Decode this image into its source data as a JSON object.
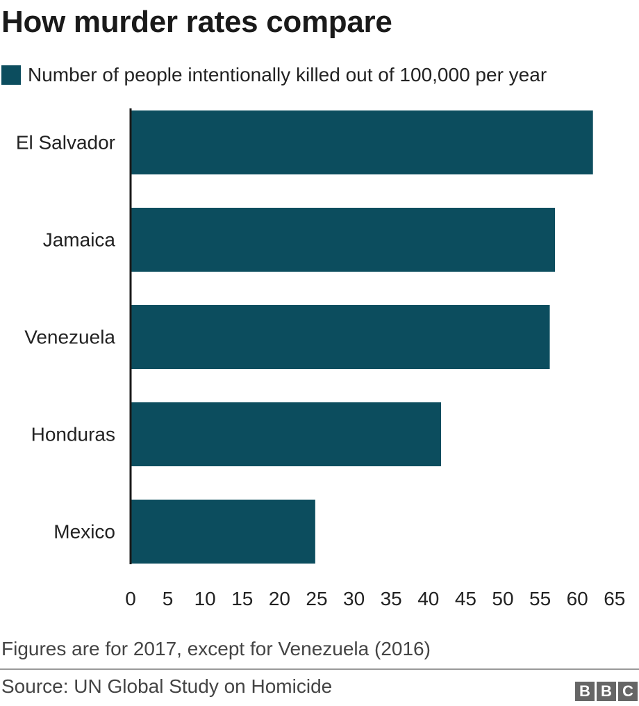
{
  "chart_data": {
    "type": "bar",
    "orientation": "horizontal",
    "title": "How murder rates compare",
    "legend": "Number of people intentionally killed out of 100,000 per year",
    "categories": [
      "El Salvador",
      "Jamaica",
      "Venezuela",
      "Honduras",
      "Mexico"
    ],
    "values": [
      62.1,
      57.0,
      56.3,
      41.7,
      24.8
    ],
    "xlim": [
      0,
      65
    ],
    "xticks": [
      0,
      5,
      10,
      15,
      20,
      25,
      30,
      35,
      40,
      45,
      50,
      55,
      60,
      65
    ],
    "grid": false,
    "legend_position": "top-left",
    "bar_color": "#0c4d5e"
  },
  "footnote": "Figures are for 2017, except for Venezuela (2016)",
  "source": "Source: UN Global Study on Homicide",
  "logo": {
    "name": "bbc-logo",
    "letters": [
      "B",
      "B",
      "C"
    ]
  }
}
